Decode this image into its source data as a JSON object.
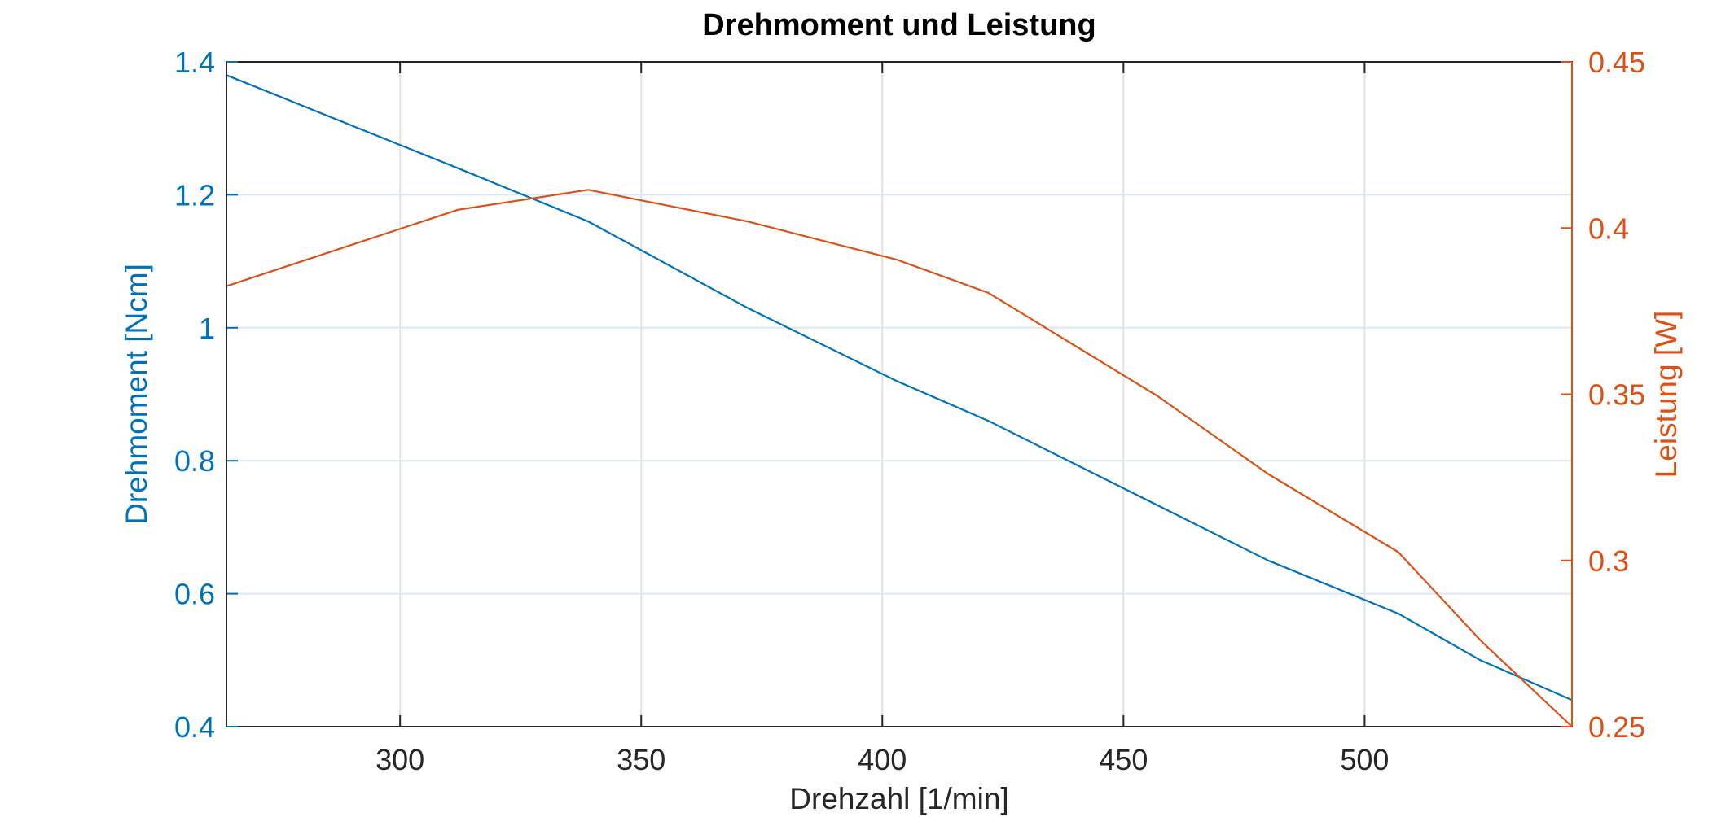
{
  "chart_data": {
    "type": "line",
    "title": "Drehmoment und Leistung",
    "xlabel": "Drehzahl [1/min]",
    "ylabel_left": "Drehmoment [Ncm]",
    "ylabel_right": "Leistung [W]",
    "xlim": [
      264,
      543
    ],
    "ylim_left": [
      0.4,
      1.4
    ],
    "ylim_right": [
      0.25,
      0.45
    ],
    "x_ticks": [
      300,
      350,
      400,
      450,
      500
    ],
    "x_tick_labels": [
      "300",
      "350",
      "400",
      "450",
      "500"
    ],
    "y_left_ticks": [
      0.4,
      0.6,
      0.8,
      1.0,
      1.2,
      1.4
    ],
    "y_left_tick_labels": [
      "0.4",
      "0.6",
      "0.8",
      "1",
      "1.2",
      "1.4"
    ],
    "y_right_ticks": [
      0.25,
      0.3,
      0.35,
      0.4,
      0.45
    ],
    "y_right_tick_labels": [
      "0.25",
      "0.3",
      "0.35",
      "0.4",
      "0.45"
    ],
    "grid": true,
    "colors": {
      "left": "#0072BD",
      "right": "#D95319",
      "grid": "#DFE3E8",
      "axis": "#262626"
    },
    "series": [
      {
        "axis": "left",
        "color": "#0072BD",
        "x": [
          264,
          312,
          339,
          372,
          403,
          422,
          480,
          507,
          524,
          543
        ],
        "y": [
          1.38,
          1.24,
          1.16,
          1.03,
          0.92,
          0.86,
          0.65,
          0.57,
          0.5,
          0.44
        ]
      },
      {
        "axis": "right",
        "color": "#D95319",
        "x": [
          264,
          312,
          339,
          372,
          403,
          422,
          457,
          480,
          507,
          524,
          543
        ],
        "y": [
          0.3825,
          0.4055,
          0.4115,
          0.402,
          0.3905,
          0.3805,
          0.3495,
          0.326,
          0.3025,
          0.276,
          0.25
        ]
      }
    ]
  }
}
